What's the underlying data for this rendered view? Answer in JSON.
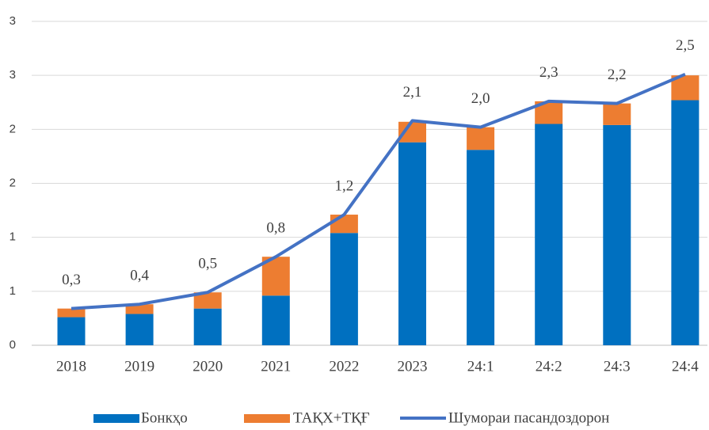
{
  "chart_data": {
    "type": "bar",
    "categories": [
      "2018",
      "2019",
      "2020",
      "2021",
      "2022",
      "2023",
      "24:1",
      "24:2",
      "24:3",
      "24:4"
    ],
    "series": [
      {
        "name": "Бонкҳо",
        "color": "#0070c0",
        "type": "bar",
        "values": [
          0.26,
          0.29,
          0.34,
          0.46,
          1.04,
          1.88,
          1.81,
          2.05,
          2.04,
          2.27
        ]
      },
      {
        "name": "ТАҚХ+ТҚҒ",
        "color": "#ed7d31",
        "type": "bar",
        "values": [
          0.08,
          0.09,
          0.15,
          0.36,
          0.17,
          0.19,
          0.21,
          0.21,
          0.2,
          0.23
        ]
      },
      {
        "name": "Шумораи пасандоздорон",
        "color": "#4472c4",
        "type": "line",
        "values": [
          0.34,
          0.38,
          0.49,
          0.82,
          1.21,
          2.08,
          2.02,
          2.26,
          2.24,
          2.51
        ],
        "value_labels": [
          "0,3",
          "0,4",
          "0,5",
          "0,8",
          "1,2",
          "2,1",
          "2,0",
          "2,3",
          "2,2",
          "2,5"
        ]
      }
    ],
    "ylim": [
      0,
      3
    ],
    "yticks": [
      0,
      {
        "value": 0.5,
        "label": "1"
      },
      1,
      {
        "value": 1.5,
        "label": "2"
      },
      2,
      {
        "value": 2.5,
        "label": "3"
      },
      3
    ],
    "grid": true,
    "stacked": true,
    "legend": "bottom"
  }
}
